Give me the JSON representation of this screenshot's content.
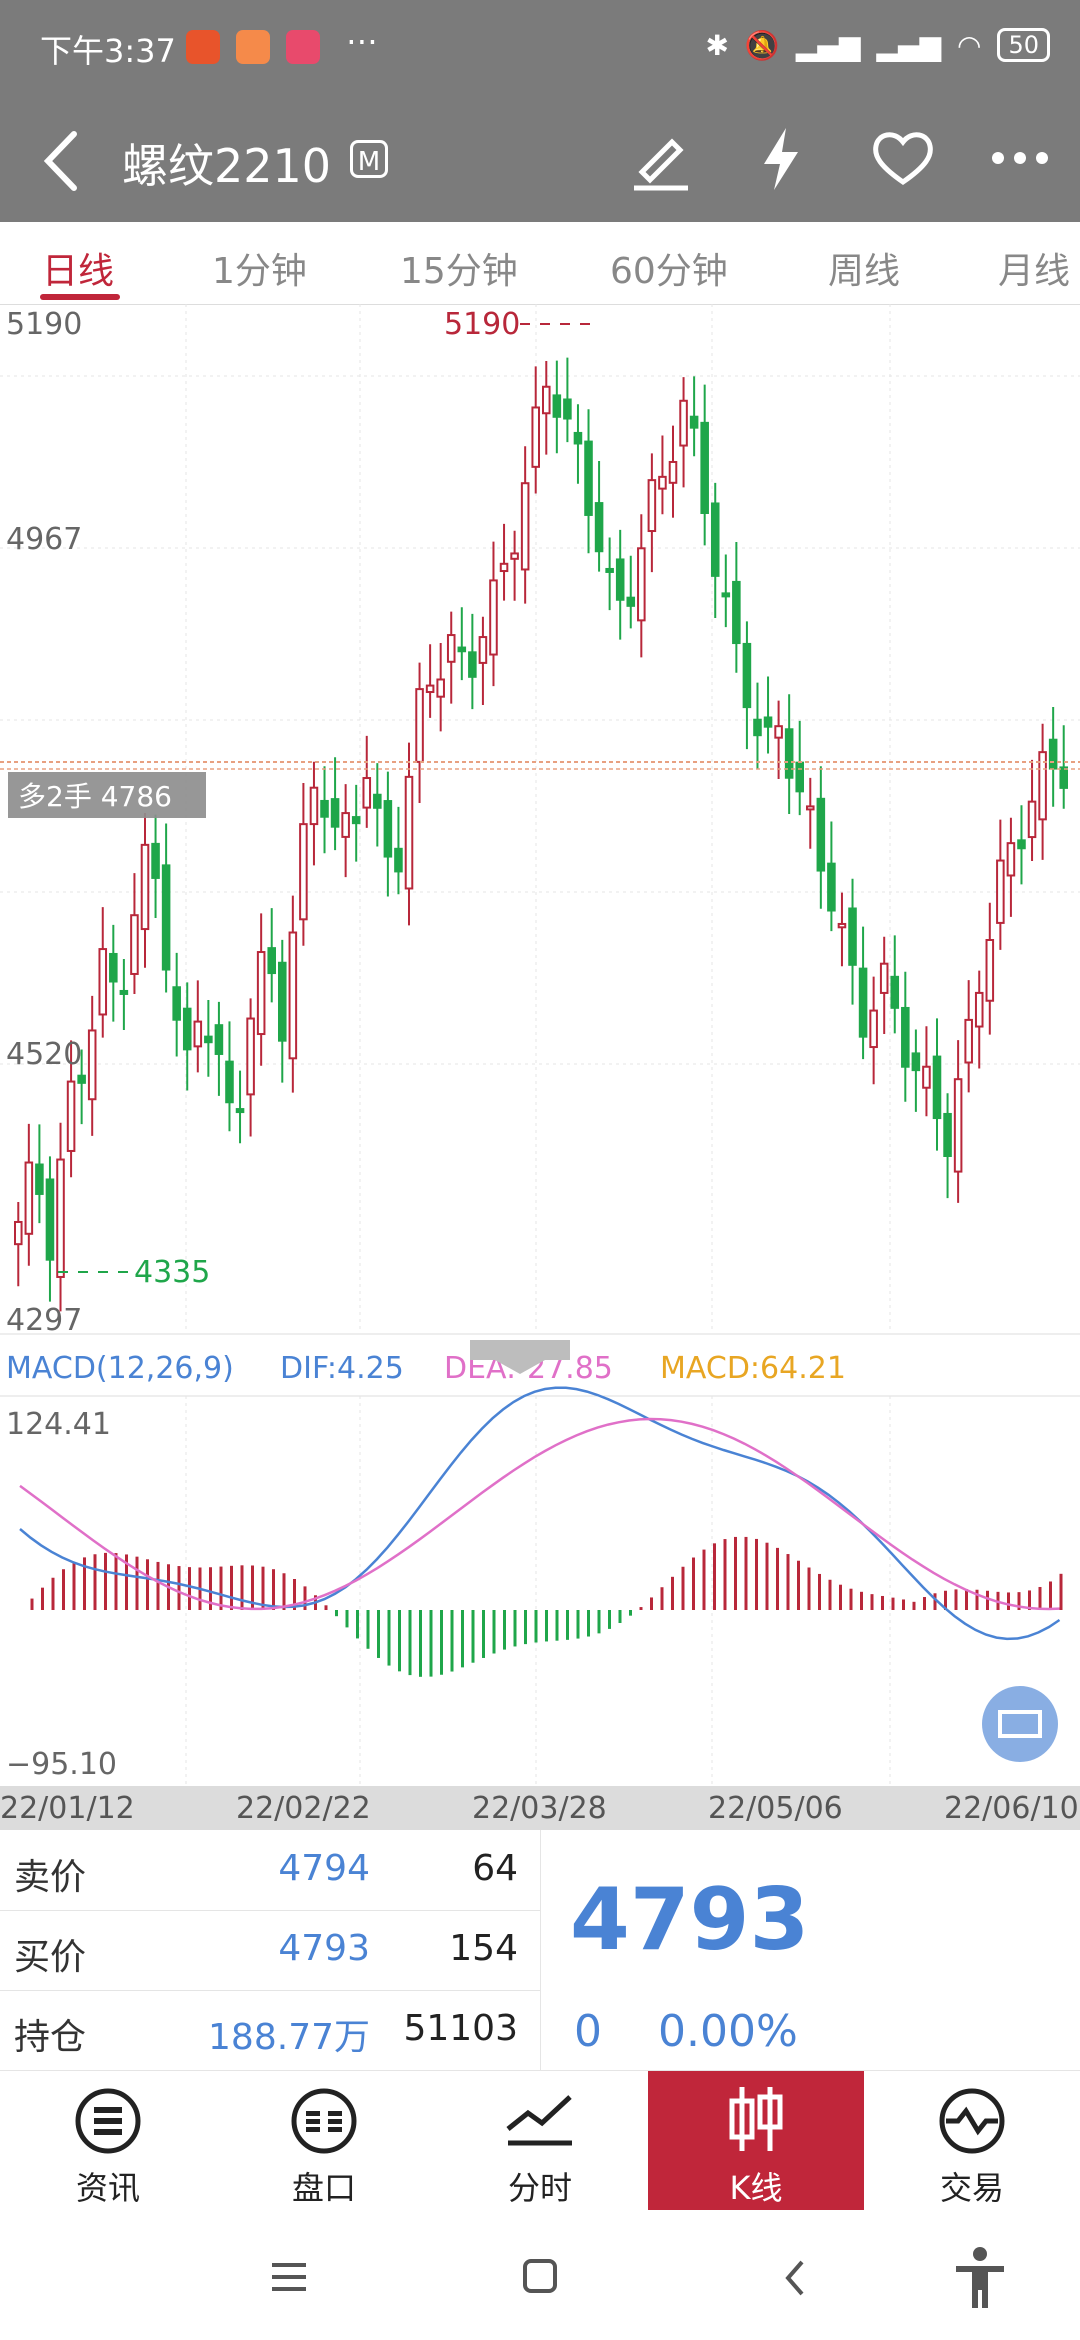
{
  "status_bar": {
    "time": "下午3:37",
    "battery": "50"
  },
  "header": {
    "title": "螺纹2210",
    "badge": "M"
  },
  "tabs": [
    {
      "label": "日线"
    },
    {
      "label": "1分钟"
    },
    {
      "label": "15分钟"
    },
    {
      "label": "60分钟"
    },
    {
      "label": "周线"
    },
    {
      "label": "月线"
    }
  ],
  "kline": {
    "y_labels": [
      "5190",
      "4967",
      "4520",
      "4297"
    ],
    "high_label": "5190",
    "low_label": "4335",
    "position_tag": "多2手 4786",
    "x_labels": [
      "22/01/12",
      "22/02/22",
      "22/03/28",
      "22/05/06",
      "22/06/10"
    ]
  },
  "macd": {
    "label": "MACD(12,26,9)",
    "dif": "DIF:4.25",
    "dea": "DEA:-27.85",
    "macd": "MACD:64.21",
    "top_label": "124.41",
    "bottom_label": "−95.10"
  },
  "quote": {
    "sell_label": "卖价",
    "sell_price": "4794",
    "sell_vol": "64",
    "buy_label": "买价",
    "buy_price": "4793",
    "buy_vol": "154",
    "oi_label": "持仓",
    "oi_value": "188.77万",
    "oi_vol": "51103",
    "last_price": "4793",
    "change": "0",
    "change_pct": "0.00%"
  },
  "bottom_nav": [
    {
      "label": "资讯",
      "icon": "news-icon"
    },
    {
      "label": "盘口",
      "icon": "orderbook-icon"
    },
    {
      "label": "分时",
      "icon": "timeshare-icon"
    },
    {
      "label": "K线",
      "icon": "kline-icon"
    },
    {
      "label": "交易",
      "icon": "trade-icon"
    }
  ],
  "colors": {
    "up": "#b8273a",
    "down": "#1fa64a",
    "accent": "#c0263a",
    "blue": "#4a83d4",
    "dea": "#e070c8",
    "macd": "#e8a623",
    "header": "#7b7b7b"
  }
}
